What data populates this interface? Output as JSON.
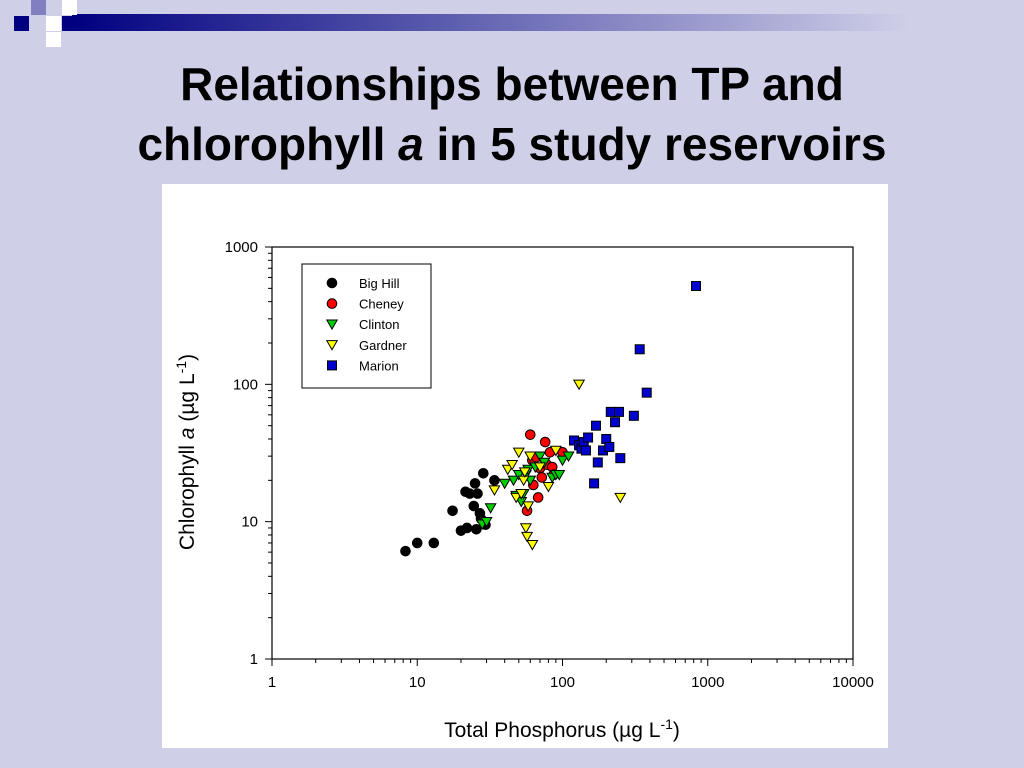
{
  "slide": {
    "title_part1": "Relationships between TP and",
    "title_part2_a": "chlorophyll ",
    "title_part2_italic": "a",
    "title_part2_b": " in 5 study reservoirs",
    "background_color": "#cfcfe8",
    "accent_color": "#000080"
  },
  "chart_data": {
    "type": "scatter",
    "x_scale": "log",
    "y_scale": "log",
    "xlim": [
      1,
      10000
    ],
    "ylim": [
      1,
      1000
    ],
    "x_ticks": [
      "1",
      "10",
      "100",
      "1000",
      "10000"
    ],
    "y_ticks": [
      "1",
      "10",
      "100",
      "1000"
    ],
    "xlabel": "Total Phosphorus (µg L",
    "xlabel_sup": "-1",
    "xlabel_end": ")",
    "ylabel_pre": "Chlorophyll ",
    "ylabel_italic": "a",
    "ylabel_mid": " (µg L",
    "ylabel_sup": "-1",
    "ylabel_end": ")",
    "grid": false,
    "legend_position": "top-left",
    "series": [
      {
        "name": "Big Hill",
        "marker": "circle",
        "color": "#000000",
        "points": [
          [
            8.3,
            6.1
          ],
          [
            10,
            7
          ],
          [
            13,
            7
          ],
          [
            17.5,
            12
          ],
          [
            20,
            8.6
          ],
          [
            22,
            9
          ],
          [
            21.5,
            16.5
          ],
          [
            23,
            16
          ],
          [
            24.5,
            13
          ],
          [
            25,
            19
          ],
          [
            25.5,
            8.8
          ],
          [
            26,
            16
          ],
          [
            27,
            11.5
          ],
          [
            27.5,
            10.5
          ],
          [
            28.5,
            22.5
          ],
          [
            29.5,
            9.5
          ],
          [
            34,
            20
          ]
        ]
      },
      {
        "name": "Cheney",
        "marker": "circle",
        "color": "#ff0000",
        "points": [
          [
            57,
            12
          ],
          [
            60,
            43
          ],
          [
            62,
            28
          ],
          [
            63,
            18.5
          ],
          [
            66,
            29.5
          ],
          [
            68,
            15
          ],
          [
            70,
            24.5
          ],
          [
            72,
            21
          ],
          [
            76,
            38
          ],
          [
            78,
            26
          ],
          [
            82,
            32
          ],
          [
            85,
            25
          ],
          [
            87,
            22
          ],
          [
            100,
            32
          ]
        ]
      },
      {
        "name": "Clinton",
        "marker": "triangle-down",
        "color": "#00cc00",
        "points": [
          [
            28,
            9.6
          ],
          [
            30,
            10
          ],
          [
            32,
            12.6
          ],
          [
            40,
            19
          ],
          [
            46,
            20
          ],
          [
            48,
            15.5
          ],
          [
            50,
            22
          ],
          [
            52,
            14
          ],
          [
            54,
            16
          ],
          [
            56,
            22
          ],
          [
            58,
            24
          ],
          [
            60,
            20
          ],
          [
            65,
            25
          ],
          [
            70,
            30
          ],
          [
            75,
            27
          ],
          [
            85,
            21
          ],
          [
            90,
            22
          ],
          [
            95,
            22
          ],
          [
            100,
            28
          ],
          [
            110,
            30
          ]
        ]
      },
      {
        "name": "Gardner",
        "marker": "triangle-down",
        "color": "#ffff00",
        "points": [
          [
            34,
            17
          ],
          [
            42,
            24
          ],
          [
            45,
            26
          ],
          [
            48,
            15
          ],
          [
            50,
            32
          ],
          [
            52,
            16
          ],
          [
            54,
            20
          ],
          [
            55,
            23
          ],
          [
            56,
            9
          ],
          [
            57,
            7.8
          ],
          [
            58,
            13
          ],
          [
            60,
            30
          ],
          [
            62,
            6.8
          ],
          [
            70,
            25
          ],
          [
            80,
            18
          ],
          [
            90,
            33
          ],
          [
            130,
            100
          ],
          [
            250,
            15
          ]
        ]
      },
      {
        "name": "Marion",
        "marker": "square",
        "color": "#0000cc",
        "points": [
          [
            120,
            39
          ],
          [
            130,
            36
          ],
          [
            135,
            34
          ],
          [
            140,
            38
          ],
          [
            145,
            33
          ],
          [
            150,
            41
          ],
          [
            165,
            19
          ],
          [
            170,
            50
          ],
          [
            175,
            27
          ],
          [
            190,
            33
          ],
          [
            200,
            40
          ],
          [
            210,
            35
          ],
          [
            215,
            63
          ],
          [
            230,
            53
          ],
          [
            245,
            63
          ],
          [
            250,
            29
          ],
          [
            310,
            59
          ],
          [
            340,
            180
          ],
          [
            380,
            87
          ],
          [
            830,
            520
          ]
        ]
      }
    ]
  }
}
